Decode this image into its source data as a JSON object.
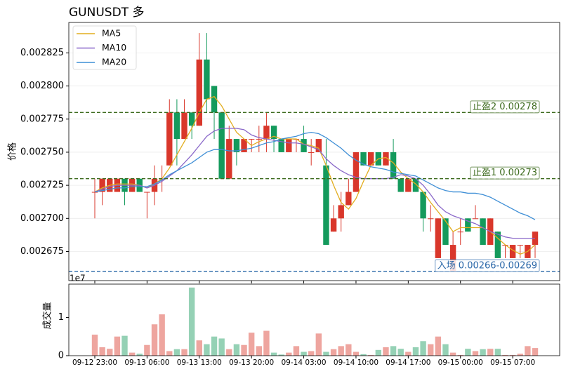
{
  "chart_data": {
    "type": "candlestick",
    "title": "GUNUSDT  多",
    "ylabel": "价格",
    "volume_ylabel": "成交量",
    "volume_offset_label": "1e7",
    "categories": [
      "09-12 23:00",
      null,
      null,
      null,
      null,
      null,
      null,
      "09-13 06:00",
      null,
      null,
      null,
      null,
      null,
      null,
      "09-13 13:00",
      null,
      null,
      null,
      null,
      null,
      null,
      "09-13 20:00",
      null,
      null,
      null,
      null,
      null,
      null,
      "09-14 03:00",
      null,
      null,
      null,
      null,
      null,
      null,
      "09-14 10:00",
      null,
      null,
      null,
      null,
      null,
      null,
      "09-14 17:00",
      null,
      null,
      null,
      null,
      null,
      null,
      "09-15 00:00",
      null,
      null,
      null,
      null,
      null,
      null,
      "09-15 07:00",
      null,
      null,
      null
    ],
    "open": [
      0.00272,
      0.00272,
      0.00272,
      0.00272,
      0.00273,
      0.00272,
      0.00273,
      0.00272,
      0.00272,
      0.00273,
      0.00274,
      0.00278,
      0.00276,
      0.00278,
      0.00277,
      0.00282,
      0.0028,
      0.00278,
      0.00273,
      0.00276,
      0.00275,
      0.00276,
      0.00276,
      0.00276,
      0.00277,
      0.00276,
      0.00275,
      0.00276,
      0.00276,
      0.00275,
      0.00275,
      0.00274,
      0.00269,
      0.0027,
      0.00271,
      0.00272,
      0.00275,
      0.00274,
      0.00275,
      0.00274,
      0.00275,
      0.00273,
      0.00272,
      0.00273,
      0.00272,
      0.0027,
      0.00267,
      0.0027,
      0.00266,
      0.00269,
      0.0027,
      0.0027,
      0.0027,
      0.00268,
      0.00269,
      0.00268,
      0.00267,
      0.00268,
      0.00267,
      0.00268
    ],
    "high": [
      0.00273,
      0.00273,
      0.00273,
      0.00273,
      0.00273,
      0.00273,
      0.00273,
      0.00272,
      0.00274,
      0.00274,
      0.00279,
      0.00279,
      0.00279,
      0.00278,
      0.00284,
      0.00284,
      0.0028,
      0.00278,
      0.00277,
      0.00276,
      0.00276,
      0.00276,
      0.00277,
      0.00278,
      0.00277,
      0.00276,
      0.00276,
      0.00276,
      0.00277,
      0.00276,
      0.00276,
      0.00276,
      0.00271,
      0.00272,
      0.00273,
      0.00275,
      0.00275,
      0.00275,
      0.00275,
      0.00275,
      0.00276,
      0.00273,
      0.00273,
      0.00273,
      0.00272,
      0.00271,
      0.0027,
      0.0027,
      0.00269,
      0.0027,
      0.0027,
      0.00271,
      0.0027,
      0.0027,
      0.00269,
      0.00268,
      0.00268,
      0.00268,
      0.00268,
      0.00269
    ],
    "low": [
      0.0027,
      0.00271,
      0.00272,
      0.00272,
      0.00271,
      0.00272,
      0.00272,
      0.0027,
      0.00271,
      0.00272,
      0.00274,
      0.00274,
      0.00276,
      0.00276,
      0.00277,
      0.00278,
      0.00276,
      0.00273,
      0.00273,
      0.00274,
      0.00275,
      0.00275,
      0.00275,
      0.00275,
      0.00275,
      0.00275,
      0.00275,
      0.00275,
      0.00275,
      0.00274,
      0.00275,
      0.00268,
      0.00269,
      0.00269,
      0.00271,
      0.00272,
      0.00274,
      0.00274,
      0.00274,
      0.00274,
      0.00273,
      0.00272,
      0.00272,
      0.00272,
      0.00269,
      0.00269,
      0.00267,
      0.00268,
      0.00266,
      0.00268,
      0.00269,
      0.0027,
      0.00268,
      0.00268,
      0.00267,
      0.00267,
      0.00267,
      0.00267,
      0.00267,
      0.00267
    ],
    "close": [
      0.00272,
      0.00273,
      0.00273,
      0.00273,
      0.00272,
      0.00273,
      0.00272,
      0.00272,
      0.00273,
      0.00273,
      0.00278,
      0.00276,
      0.00278,
      0.00277,
      0.00282,
      0.00279,
      0.00278,
      0.00273,
      0.00276,
      0.00275,
      0.00276,
      0.00276,
      0.00276,
      0.00277,
      0.00276,
      0.00275,
      0.00276,
      0.00276,
      0.00275,
      0.00275,
      0.00276,
      0.00268,
      0.0027,
      0.00271,
      0.00272,
      0.00275,
      0.00274,
      0.00275,
      0.00274,
      0.00275,
      0.00273,
      0.00272,
      0.00273,
      0.00272,
      0.0027,
      0.0027,
      0.0027,
      0.00268,
      0.00268,
      0.00269,
      0.00269,
      0.0027,
      0.00268,
      0.0027,
      0.00267,
      0.00268,
      0.00268,
      0.00268,
      0.00268,
      0.00269
    ],
    "volume": [
      0.55,
      0.22,
      0.18,
      0.5,
      0.52,
      0.08,
      0.05,
      0.28,
      0.82,
      1.08,
      0.12,
      0.17,
      0.17,
      1.78,
      0.4,
      0.3,
      0.5,
      0.45,
      0.17,
      0.3,
      0.28,
      0.6,
      0.25,
      0.65,
      0.08,
      0.03,
      0.08,
      0.25,
      0.1,
      0.12,
      0.58,
      0.1,
      0.17,
      0.25,
      0.3,
      0.1,
      0.04,
      0.02,
      0.15,
      0.22,
      0.25,
      0.18,
      0.1,
      0.22,
      0.38,
      0.3,
      0.5,
      0.3,
      0.08,
      0.02,
      0.18,
      0.12,
      0.17,
      0.18,
      0.18,
      0.02,
      0.02,
      0.05,
      0.25,
      0.2
    ],
    "up_color": "#d9372b",
    "down_color": "#149a5c",
    "series": [
      {
        "name": "MA5",
        "color": "#e2ad1f",
        "values": [
          0.00272,
          0.002723,
          0.002725,
          0.002726,
          0.002726,
          0.002726,
          0.002725,
          0.002723,
          0.002726,
          0.00273,
          0.002738,
          0.002748,
          0.002758,
          0.002768,
          0.00278,
          0.00279,
          0.002792,
          0.002785,
          0.002775,
          0.002765,
          0.00276,
          0.002755,
          0.002758,
          0.00276,
          0.002762,
          0.00276,
          0.00276,
          0.00276,
          0.002756,
          0.002755,
          0.002753,
          0.00274,
          0.002725,
          0.002712,
          0.002707,
          0.002715,
          0.002728,
          0.00274,
          0.002745,
          0.002746,
          0.002742,
          0.002735,
          0.00273,
          0.002726,
          0.00272,
          0.002712,
          0.002705,
          0.002698,
          0.00269,
          0.002693,
          0.002693,
          0.002693,
          0.002693,
          0.00269,
          0.002685,
          0.00268,
          0.002676,
          0.002673,
          0.002675,
          0.00268
        ]
      },
      {
        "name": "MA10",
        "color": "#8a68c9",
        "values": [
          0.00272,
          0.002722,
          0.002724,
          0.002725,
          0.002725,
          0.002725,
          0.002725,
          0.002723,
          0.002725,
          0.002728,
          0.002732,
          0.002736,
          0.002742,
          0.002748,
          0.002755,
          0.002762,
          0.002766,
          0.002768,
          0.002768,
          0.002768,
          0.002767,
          0.002763,
          0.002761,
          0.00276,
          0.002759,
          0.002758,
          0.002757,
          0.002757,
          0.002756,
          0.002754,
          0.002752,
          0.002745,
          0.00274,
          0.002736,
          0.002733,
          0.002731,
          0.00273,
          0.00273,
          0.00273,
          0.00273,
          0.002731,
          0.002733,
          0.002732,
          0.00273,
          0.002725,
          0.002718,
          0.00271,
          0.002705,
          0.002702,
          0.0027,
          0.002698,
          0.002696,
          0.002693,
          0.00269,
          0.002688,
          0.002686,
          0.002685,
          0.002685,
          0.002685,
          0.002685
        ]
      },
      {
        "name": "MA20",
        "color": "#3f8fd6",
        "values": [
          0.00272,
          0.002721,
          0.002722,
          0.002723,
          0.002723,
          0.002724,
          0.002724,
          0.002724,
          0.002726,
          0.002729,
          0.002733,
          0.002736,
          0.002739,
          0.002742,
          0.002746,
          0.00275,
          0.002752,
          0.002752,
          0.002751,
          0.002751,
          0.002752,
          0.002753,
          0.002755,
          0.002757,
          0.002758,
          0.00276,
          0.002761,
          0.002762,
          0.002764,
          0.002765,
          0.002764,
          0.002761,
          0.002757,
          0.002753,
          0.002748,
          0.002744,
          0.002741,
          0.002739,
          0.002738,
          0.002737,
          0.002735,
          0.002734,
          0.002733,
          0.002732,
          0.002729,
          0.002726,
          0.002723,
          0.002721,
          0.00272,
          0.00272,
          0.002719,
          0.002719,
          0.002718,
          0.002716,
          0.002713,
          0.00271,
          0.002707,
          0.002704,
          0.002702,
          0.002699
        ]
      }
    ],
    "hlines": [
      {
        "value": 0.00278,
        "label": "止盈2 0.00278",
        "color": "#3d6b1e"
      },
      {
        "value": 0.00273,
        "label": "止盈1 0.00273",
        "color": "#3d6b1e"
      },
      {
        "value": 0.00266,
        "label": "入场 0.00266-0.00269",
        "color": "#2a67a8"
      }
    ],
    "ylim": [
      0.002653,
      0.002848
    ],
    "yticks": [
      0.002675,
      {
        "value": 0.0027,
        "label": "0.002700"
      },
      0.002725,
      {
        "value": 0.00275,
        "label": "0.002750"
      },
      0.002775,
      {
        "value": 0.0028,
        "label": "0.002800"
      },
      0.002825
    ],
    "volume_ylim": [
      0,
      1.87
    ],
    "volume_yticks": [
      0,
      1
    ],
    "grid": true,
    "legend": "upper left"
  }
}
